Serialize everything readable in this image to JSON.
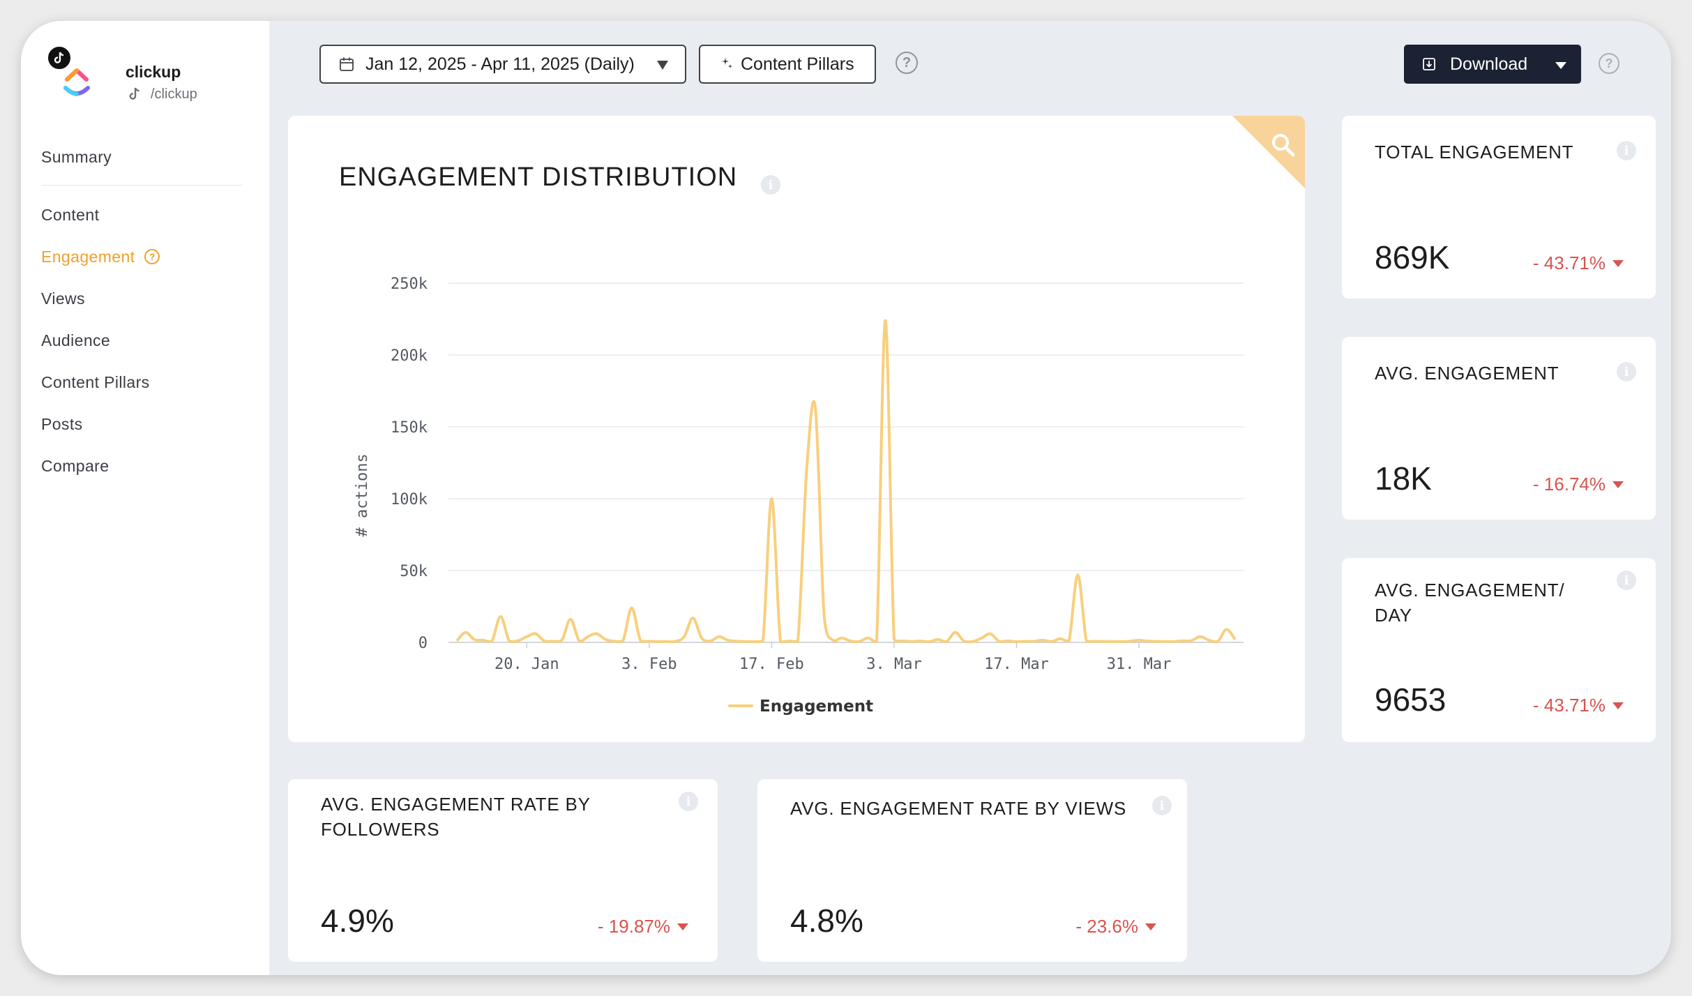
{
  "account": {
    "name": "clickup",
    "handle": "/clickup"
  },
  "nav": {
    "items": [
      {
        "label": "Summary"
      },
      {
        "label": "Content"
      },
      {
        "label": "Engagement"
      },
      {
        "label": "Views"
      },
      {
        "label": "Audience"
      },
      {
        "label": "Content Pillars"
      },
      {
        "label": "Posts"
      },
      {
        "label": "Compare"
      }
    ],
    "active": "Engagement",
    "help_glyph": "?"
  },
  "toolbar": {
    "date_range": "Jan 12, 2025 - Apr 11, 2025 (Daily)",
    "content_pillars": "Content Pillars",
    "download": "Download",
    "help_glyph": "?"
  },
  "chart_card": {
    "title": "ENGAGEMENT DISTRIBUTION",
    "info_glyph": "i"
  },
  "chart_data": {
    "type": "line",
    "title": "ENGAGEMENT DISTRIBUTION",
    "ylabel": "# actions",
    "xlabel": "",
    "ylim": [
      0,
      250000
    ],
    "yticks": [
      0,
      50000,
      100000,
      150000,
      200000,
      250000
    ],
    "ytick_labels": [
      "0",
      "50k",
      "100k",
      "150k",
      "200k",
      "250k"
    ],
    "xtick_labels": [
      "20. Jan",
      "3. Feb",
      "17. Feb",
      "3. Mar",
      "17. Mar",
      "31. Mar"
    ],
    "x_start": "2025-01-12",
    "x_end": "2025-04-11",
    "grid": true,
    "legend_position": "bottom-center",
    "series": [
      {
        "name": "Engagement",
        "color": "#f8cf7c",
        "values": [
          1000,
          7000,
          2000,
          1500,
          800,
          18000,
          1000,
          1200,
          4000,
          6000,
          1000,
          800,
          1500,
          16000,
          1000,
          4000,
          6000,
          2000,
          800,
          1000,
          24000,
          1200,
          800,
          600,
          500,
          700,
          4000,
          17000,
          3000,
          1000,
          4000,
          1500,
          800,
          600,
          500,
          1200,
          100000,
          600,
          900,
          1000,
          120000,
          163000,
          18000,
          1500,
          3000,
          1000,
          600,
          3000,
          500,
          224000,
          2000,
          1000,
          600,
          900,
          500,
          2000,
          600,
          7000,
          800,
          600,
          3000,
          6000,
          800,
          1000,
          500,
          700,
          800,
          1500,
          600,
          2500,
          1200,
          47000,
          1000,
          800,
          600,
          600,
          500,
          800,
          1500,
          900,
          700,
          600,
          600,
          1000,
          1200,
          4000,
          1500,
          600,
          9000,
          2000
        ]
      }
    ]
  },
  "metrics": {
    "total_engagement": {
      "label": "TOTAL ENGAGEMENT",
      "value": "869K",
      "change": "- 43.71%"
    },
    "avg_engagement": {
      "label": "AVG. ENGAGEMENT",
      "value": "18K",
      "change": "- 16.74%"
    },
    "avg_engagement_day": {
      "label_line1": "AVG. ENGAGEMENT/",
      "label_line2": "DAY",
      "value": "9653",
      "change": "- 43.71%"
    },
    "rate_followers": {
      "label_line1": "AVG. ENGAGEMENT RATE BY",
      "label_line2": "FOLLOWERS",
      "value": "4.9%",
      "change": "- 19.87%"
    },
    "rate_views": {
      "label": "AVG. ENGAGEMENT RATE BY VIEWS",
      "value": "4.8%",
      "change": "- 23.6%"
    }
  },
  "colors": {
    "accent": "#f0a02b",
    "negative": "#d9534f",
    "line": "#f8cf7c",
    "download_bg": "#1b2233"
  }
}
